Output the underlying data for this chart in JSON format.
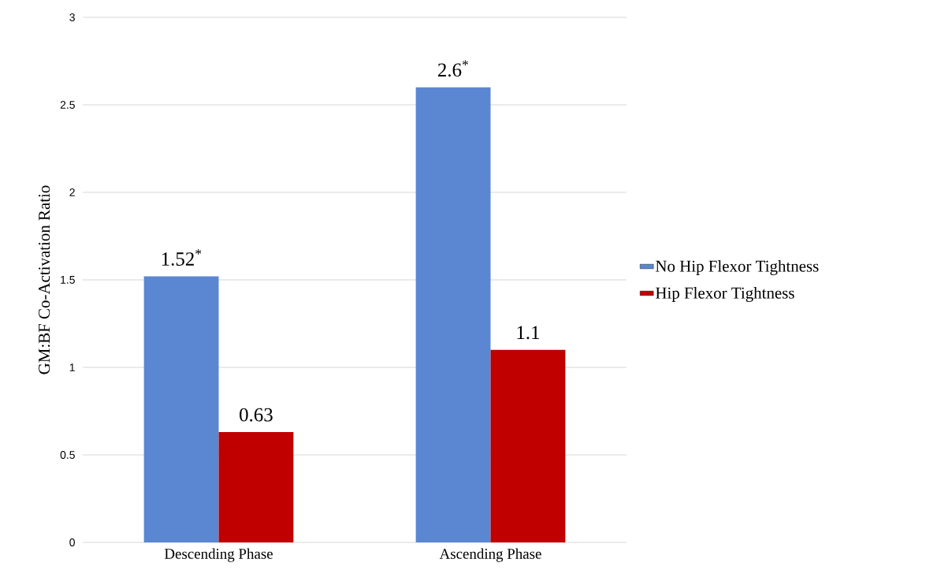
{
  "chart_data": {
    "type": "bar",
    "ylabel": "GM:BF Co-Activation Ratio",
    "categories": [
      "Descending Phase",
      "Ascending Phase"
    ],
    "series": [
      {
        "name": "No Hip Flexor Tightness",
        "color": "#5b87d2",
        "values": [
          1.52,
          2.6
        ],
        "value_labels": [
          "1.52$^{*}$",
          "2.6$^{*}$"
        ]
      },
      {
        "name": "Hip Flexor Tightness",
        "color": "#c00000",
        "values": [
          0.63,
          1.1
        ],
        "value_labels": [
          "0.63",
          "1.1"
        ]
      }
    ],
    "ylim": [
      0,
      3
    ],
    "yticks": [
      0,
      0.5,
      1,
      1.5,
      2,
      2.5,
      3
    ],
    "grid": "y",
    "legend": "right"
  }
}
